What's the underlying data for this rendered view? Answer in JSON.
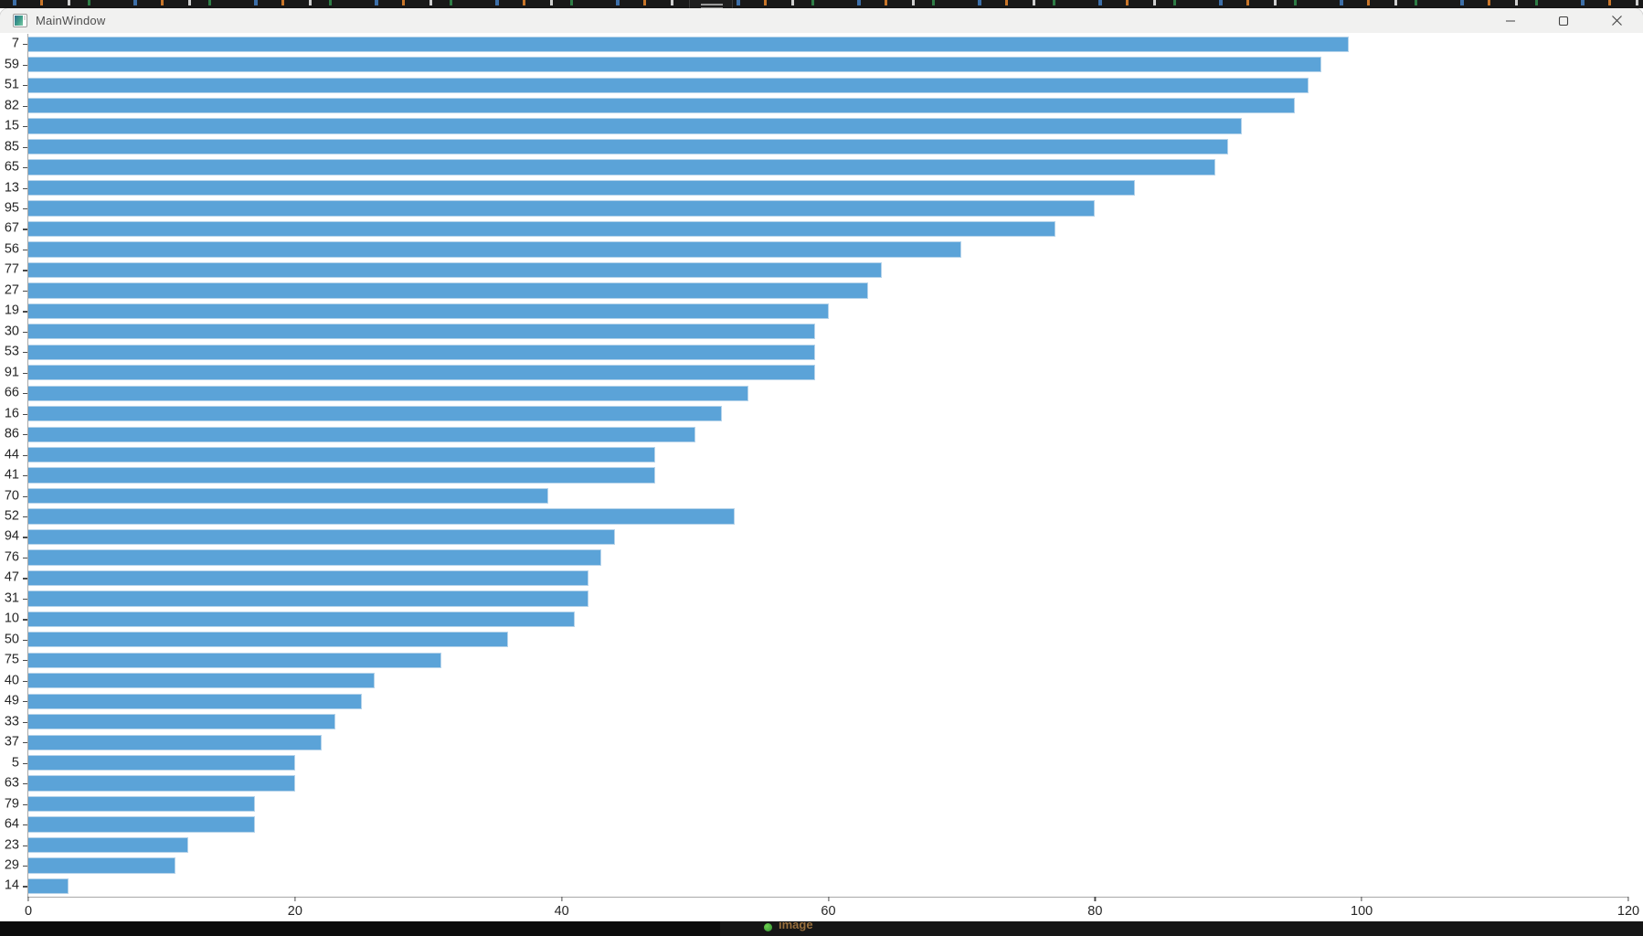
{
  "window": {
    "title": "MainWindow",
    "controls": {
      "minimize": "minimize",
      "maximize": "maximize",
      "close": "close"
    }
  },
  "chart_data": {
    "type": "bar",
    "orientation": "horizontal",
    "title": "",
    "xlabel": "",
    "ylabel": "",
    "grid": false,
    "xlim": [
      0,
      120
    ],
    "x_ticks": [
      0,
      20,
      40,
      60,
      80,
      100,
      120
    ],
    "bar_color": "#5ba3d8",
    "bar_edge_color": "#b5d3ea",
    "categories": [
      "7",
      "59",
      "51",
      "82",
      "15",
      "85",
      "65",
      "13",
      "95",
      "67",
      "56",
      "77",
      "27",
      "19",
      "30",
      "53",
      "91",
      "66",
      "16",
      "86",
      "44",
      "41",
      "70",
      "52",
      "94",
      "76",
      "47",
      "31",
      "10",
      "50",
      "75",
      "40",
      "49",
      "33",
      "37",
      "5",
      "63",
      "79",
      "64",
      "23",
      "29",
      "14"
    ],
    "values": [
      99,
      97,
      96,
      95,
      91,
      90,
      89,
      83,
      80,
      77,
      70,
      64,
      63,
      60,
      59,
      59,
      59,
      54,
      52,
      50,
      47,
      47,
      39,
      53,
      44,
      43,
      42,
      42,
      41,
      36,
      31,
      26,
      25,
      23,
      22,
      20,
      20,
      17,
      17,
      12,
      11,
      3
    ]
  },
  "taskbar": {
    "status_text": "image"
  }
}
